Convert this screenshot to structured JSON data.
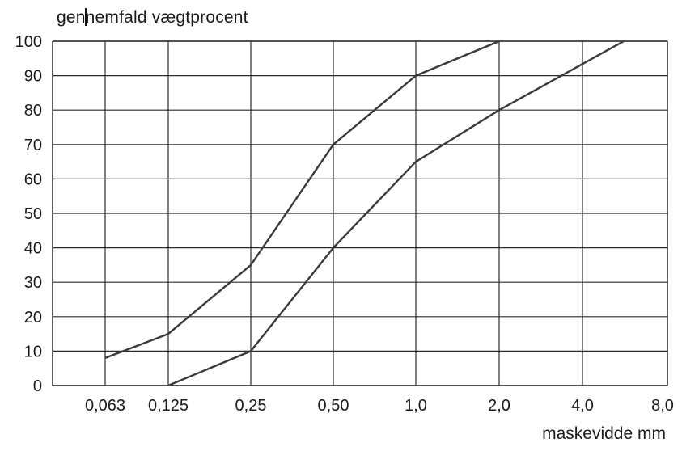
{
  "chart_data": {
    "type": "line",
    "ylabel_before_cursor": "gen",
    "ylabel_after_cursor": "nemfald vægtprocent",
    "xlabel": "maskevidde mm",
    "x_ticks": [
      "0,063",
      "0,125",
      "0,25",
      "0,50",
      "1,0",
      "2,0",
      "4,0",
      "8,0"
    ],
    "x_tick_values": [
      0.063,
      0.125,
      0.25,
      0.5,
      1.0,
      2.0,
      4.0,
      8.0
    ],
    "x_scale": "log",
    "y_ticks": [
      "0",
      "10",
      "20",
      "30",
      "40",
      "50",
      "60",
      "70",
      "80",
      "90",
      "100"
    ],
    "ylim": [
      0,
      100
    ],
    "grid": true,
    "series": [
      {
        "x": [
          0.063,
          0.125,
          0.25,
          0.5,
          1.0,
          2.0
        ],
        "y": [
          8,
          15,
          35,
          70,
          90,
          100
        ]
      },
      {
        "x": [
          0.125,
          0.25,
          0.5,
          1.0,
          2.0,
          5.6
        ],
        "y": [
          0,
          10,
          40,
          65,
          80,
          100
        ]
      }
    ]
  }
}
